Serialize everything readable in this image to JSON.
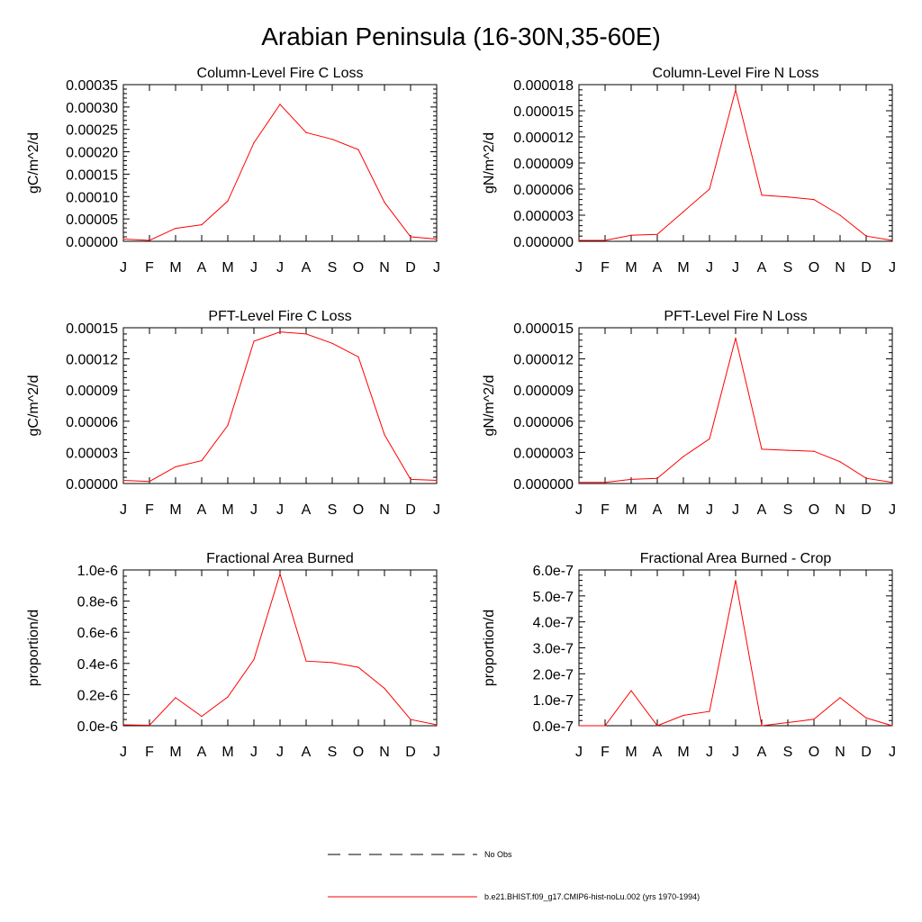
{
  "page": {
    "title": "Arabian Peninsula (16-30N,35-60E)"
  },
  "colors": {
    "model_line": "#ff0000",
    "obs_line": "#000000",
    "axis": "#000000"
  },
  "legend": {
    "items": [
      {
        "label": "No Obs",
        "style": "dashed",
        "color": "#000000"
      },
      {
        "label": "b.e21.BHIST.f09_g17.CMIP6-hist-noLu.002 (yrs 1970-1994)",
        "style": "solid",
        "color": "#ff0000"
      }
    ]
  },
  "chart_data": [
    {
      "type": "line",
      "title": "Column-Level Fire C Loss",
      "ylabel": "gC/m^2/d",
      "xlabel": "",
      "categories": [
        "J",
        "F",
        "M",
        "A",
        "M",
        "J",
        "J",
        "A",
        "S",
        "O",
        "N",
        "D",
        "J"
      ],
      "yticks": [
        "0.00000",
        "0.00005",
        "0.00010",
        "0.00015",
        "0.00020",
        "0.00025",
        "0.00030",
        "0.00035"
      ],
      "ylim": [
        0,
        0.00035
      ],
      "series": [
        {
          "values": [
            5e-06,
            2e-06,
            2.9e-05,
            3.7e-05,
            9e-05,
            0.00022,
            0.000306,
            0.000243,
            0.000228,
            0.000205,
            8.7e-05,
            1e-05,
            5e-06
          ]
        }
      ]
    },
    {
      "type": "line",
      "title": "Column-Level Fire N Loss",
      "ylabel": "gN/m^2/d",
      "xlabel": "",
      "categories": [
        "J",
        "F",
        "M",
        "A",
        "M",
        "J",
        "J",
        "A",
        "S",
        "O",
        "N",
        "D",
        "J"
      ],
      "yticks": [
        "0.000000",
        "0.000003",
        "0.000006",
        "0.000009",
        "0.000012",
        "0.000015",
        "0.000018"
      ],
      "ylim": [
        0,
        1.8e-05
      ],
      "series": [
        {
          "values": [
            1e-07,
            1e-07,
            7e-07,
            8e-07,
            3.4e-06,
            6e-06,
            1.74e-05,
            5.3e-06,
            5.1e-06,
            4.8e-06,
            3e-06,
            6e-07,
            1e-07
          ]
        }
      ]
    },
    {
      "type": "line",
      "title": "PFT-Level Fire C Loss",
      "ylabel": "gC/m^2/d",
      "xlabel": "",
      "categories": [
        "J",
        "F",
        "M",
        "A",
        "M",
        "J",
        "J",
        "A",
        "S",
        "O",
        "N",
        "D",
        "J"
      ],
      "yticks": [
        "0.00000",
        "0.00003",
        "0.00006",
        "0.00009",
        "0.00012",
        "0.00015"
      ],
      "ylim": [
        0,
        0.00015
      ],
      "series": [
        {
          "values": [
            3e-06,
            2e-06,
            1.6e-05,
            2.2e-05,
            5.6e-05,
            0.000137,
            0.000146,
            0.000144,
            0.000135,
            0.000122,
            4.7e-05,
            4e-06,
            3e-06
          ]
        }
      ]
    },
    {
      "type": "line",
      "title": "PFT-Level Fire N Loss",
      "ylabel": "gN/m^2/d",
      "xlabel": "",
      "categories": [
        "J",
        "F",
        "M",
        "A",
        "M",
        "J",
        "J",
        "A",
        "S",
        "O",
        "N",
        "D",
        "J"
      ],
      "yticks": [
        "0.000000",
        "0.000003",
        "0.000006",
        "0.000009",
        "0.000012",
        "0.000015"
      ],
      "ylim": [
        0,
        1.5e-05
      ],
      "series": [
        {
          "values": [
            1e-07,
            1e-07,
            4e-07,
            5e-07,
            2.6e-06,
            4.3e-06,
            1.4e-05,
            3.3e-06,
            3.2e-06,
            3.1e-06,
            2.1e-06,
            5e-07,
            1e-07
          ]
        }
      ]
    },
    {
      "type": "line",
      "title": "Fractional Area Burned",
      "ylabel": "proportion/d",
      "xlabel": "",
      "categories": [
        "J",
        "F",
        "M",
        "A",
        "M",
        "J",
        "J",
        "A",
        "S",
        "O",
        "N",
        "D",
        "J"
      ],
      "yticks": [
        "0.0e-6",
        "0.2e-6",
        "0.4e-6",
        "0.6e-6",
        "0.8e-6",
        "1.0e-6"
      ],
      "ylim": [
        0,
        1e-06
      ],
      "series": [
        {
          "values": [
            6e-09,
            3e-09,
            1.8e-07,
            6e-08,
            1.85e-07,
            4.25e-07,
            9.75e-07,
            4.15e-07,
            4.05e-07,
            3.75e-07,
            2.4e-07,
            4e-08,
            6e-09
          ]
        }
      ]
    },
    {
      "type": "line",
      "title": "Fractional Area Burned - Crop",
      "ylabel": "proportion/d",
      "xlabel": "",
      "categories": [
        "J",
        "F",
        "M",
        "A",
        "M",
        "J",
        "J",
        "A",
        "S",
        "O",
        "N",
        "D",
        "J"
      ],
      "yticks": [
        "0.0e-7",
        "1.0e-7",
        "2.0e-7",
        "3.0e-7",
        "4.0e-7",
        "5.0e-7",
        "6.0e-7"
      ],
      "ylim": [
        0,
        6e-07
      ],
      "series": [
        {
          "values": [
            0.0,
            0.0,
            1.35e-07,
            0.0,
            4e-08,
            5.5e-08,
            5.6e-07,
            0.0,
            1.2e-08,
            2.5e-08,
            1.08e-07,
            3e-08,
            0.0
          ]
        }
      ]
    }
  ]
}
